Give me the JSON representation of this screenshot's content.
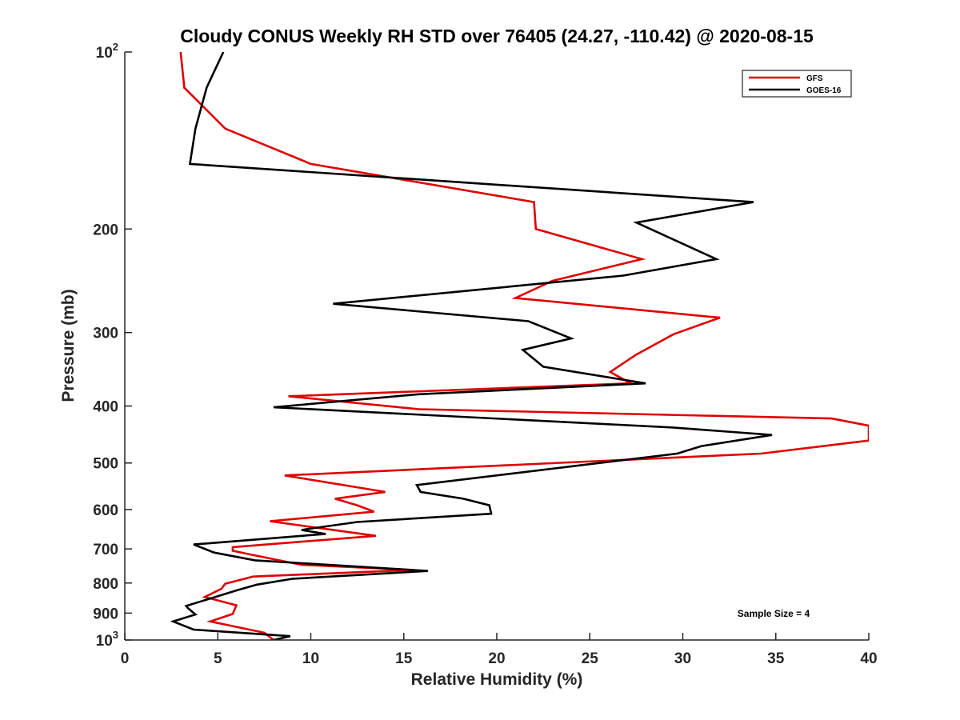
{
  "chart_data": {
    "type": "line",
    "title": "Cloudy CONUS Weekly RH STD over 76405 (24.27, -110.42) @ 2020-08-15",
    "xlabel": "Relative Humidity (%)",
    "ylabel": "Pressure (mb)",
    "xlim": [
      0,
      40
    ],
    "ylim": [
      100,
      1000
    ],
    "yscale": "log",
    "yreversed": true,
    "grid": false,
    "legend_position": "top-right",
    "x_ticks": [
      "0",
      "5",
      "10",
      "15",
      "20",
      "25",
      "30",
      "35",
      "40"
    ],
    "y_ticks": [
      {
        "value": 100,
        "base": "10",
        "exp": "2"
      },
      {
        "value": 200,
        "label": "200"
      },
      {
        "value": 300,
        "label": "300"
      },
      {
        "value": 400,
        "label": "400"
      },
      {
        "value": 500,
        "label": "500"
      },
      {
        "value": 600,
        "label": "600"
      },
      {
        "value": 700,
        "label": "700"
      },
      {
        "value": 800,
        "label": "800"
      },
      {
        "value": 900,
        "label": "900"
      },
      {
        "value": 1000,
        "base": "10",
        "exp": "3"
      }
    ],
    "annotation": "Sample Size = 4",
    "series": [
      {
        "name": "GFS",
        "color": "#e00000",
        "points": [
          [
            3.0,
            100
          ],
          [
            3.2,
            115
          ],
          [
            5.4,
            135
          ],
          [
            10.0,
            155
          ],
          [
            22.0,
            180
          ],
          [
            22.1,
            200
          ],
          [
            27.8,
            225
          ],
          [
            23.0,
            245
          ],
          [
            21.0,
            262
          ],
          [
            32.0,
            283
          ],
          [
            29.5,
            302
          ],
          [
            27.5,
            327
          ],
          [
            26.1,
            350
          ],
          [
            27.2,
            366
          ],
          [
            8.8,
            385
          ],
          [
            15.8,
            405
          ],
          [
            38.0,
            420
          ],
          [
            40.0,
            432
          ],
          [
            40.0,
            458
          ],
          [
            34.2,
            482
          ],
          [
            8.6,
            525
          ],
          [
            14.0,
            560
          ],
          [
            11.3,
            575
          ],
          [
            12.5,
            590
          ],
          [
            13.4,
            605
          ],
          [
            7.8,
            628
          ],
          [
            13.5,
            665
          ],
          [
            5.8,
            695
          ],
          [
            5.8,
            705
          ],
          [
            6.7,
            715
          ],
          [
            9.5,
            745
          ],
          [
            15.5,
            760
          ],
          [
            6.9,
            780
          ],
          [
            5.4,
            802
          ],
          [
            5.2,
            818
          ],
          [
            4.3,
            845
          ],
          [
            6.0,
            873
          ],
          [
            5.8,
            903
          ],
          [
            4.6,
            930
          ],
          [
            7.5,
            972
          ],
          [
            8.0,
            1000
          ]
        ]
      },
      {
        "name": "GOES-16",
        "color": "#000000",
        "points": [
          [
            5.3,
            100
          ],
          [
            4.4,
            115
          ],
          [
            3.8,
            135
          ],
          [
            3.5,
            155
          ],
          [
            33.8,
            180
          ],
          [
            27.5,
            195
          ],
          [
            31.8,
            225
          ],
          [
            26.8,
            240
          ],
          [
            11.2,
            268
          ],
          [
            21.7,
            287
          ],
          [
            24.0,
            307
          ],
          [
            21.4,
            321
          ],
          [
            22.5,
            343
          ],
          [
            28.0,
            366
          ],
          [
            15.8,
            382
          ],
          [
            8.0,
            402
          ],
          [
            29.4,
            435
          ],
          [
            34.8,
            448
          ],
          [
            31.0,
            468
          ],
          [
            29.7,
            482
          ],
          [
            15.7,
            545
          ],
          [
            15.9,
            560
          ],
          [
            18.2,
            575
          ],
          [
            19.6,
            590
          ],
          [
            19.7,
            610
          ],
          [
            12.5,
            630
          ],
          [
            10.2,
            645
          ],
          [
            9.5,
            650
          ],
          [
            10.8,
            660
          ],
          [
            3.7,
            688
          ],
          [
            4.8,
            710
          ],
          [
            7.0,
            732
          ],
          [
            16.3,
            763
          ],
          [
            9.0,
            787
          ],
          [
            7.1,
            805
          ],
          [
            6.1,
            822
          ],
          [
            3.3,
            875
          ],
          [
            3.4,
            883
          ],
          [
            3.8,
            905
          ],
          [
            2.6,
            930
          ],
          [
            3.7,
            960
          ],
          [
            8.9,
            985
          ],
          [
            8.0,
            1000
          ]
        ]
      }
    ]
  }
}
